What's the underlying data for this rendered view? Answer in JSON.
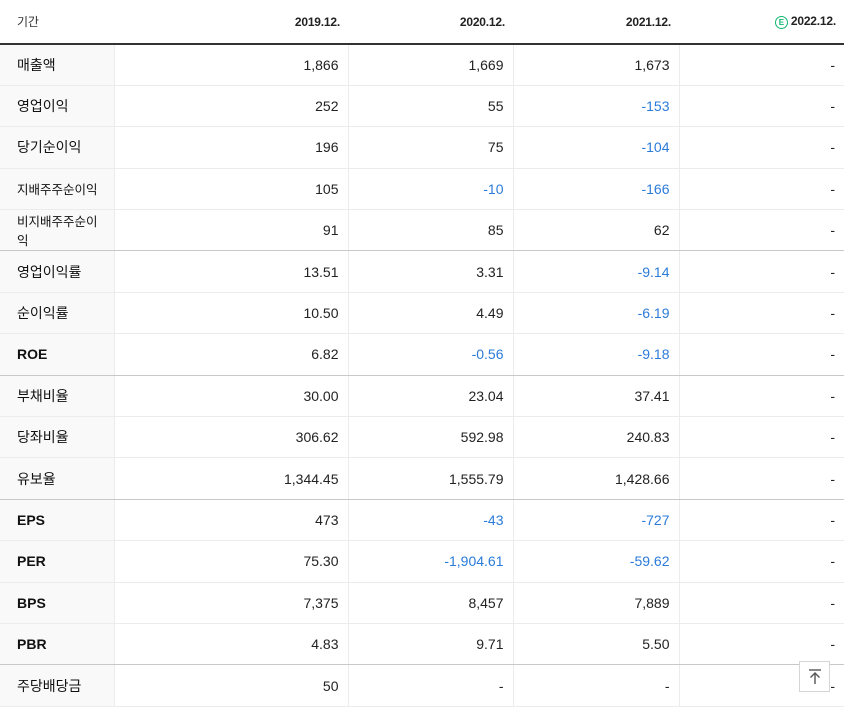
{
  "header": {
    "period_label": "기간",
    "columns": [
      "2019.12.",
      "2020.12.",
      "2021.12.",
      "2022.12."
    ],
    "estimate_icon": "estimate-e-icon",
    "estimate_glyph": "E"
  },
  "rows": [
    {
      "label": "매출액",
      "values": [
        "1,866",
        "1,669",
        "1,673",
        "-"
      ]
    },
    {
      "label": "영업이익",
      "values": [
        "252",
        "55",
        "-153",
        "-"
      ]
    },
    {
      "label": "당기순이익",
      "values": [
        "196",
        "75",
        "-104",
        "-"
      ]
    },
    {
      "label": "지배주주순이익",
      "values": [
        "105",
        "-10",
        "-166",
        "-"
      ]
    },
    {
      "label": "비지배주주순이익",
      "values": [
        "91",
        "85",
        "62",
        "-"
      ]
    },
    {
      "label": "영업이익률",
      "values": [
        "13.51",
        "3.31",
        "-9.14",
        "-"
      ]
    },
    {
      "label": "순이익률",
      "values": [
        "10.50",
        "4.49",
        "-6.19",
        "-"
      ]
    },
    {
      "label": "ROE",
      "values": [
        "6.82",
        "-0.56",
        "-9.18",
        "-"
      ]
    },
    {
      "label": "부채비율",
      "values": [
        "30.00",
        "23.04",
        "37.41",
        "-"
      ]
    },
    {
      "label": "당좌비율",
      "values": [
        "306.62",
        "592.98",
        "240.83",
        "-"
      ]
    },
    {
      "label": "유보율",
      "values": [
        "1,344.45",
        "1,555.79",
        "1,428.66",
        "-"
      ]
    },
    {
      "label": "EPS",
      "values": [
        "473",
        "-43",
        "-727",
        "-"
      ]
    },
    {
      "label": "PER",
      "values": [
        "75.30",
        "-1,904.61",
        "-59.62",
        "-"
      ]
    },
    {
      "label": "BPS",
      "values": [
        "7,375",
        "8,457",
        "7,889",
        "-"
      ]
    },
    {
      "label": "PBR",
      "values": [
        "4.83",
        "9.71",
        "5.50",
        "-"
      ]
    },
    {
      "label": "주당배당금",
      "values": [
        "50",
        "-",
        "-",
        "-"
      ]
    }
  ],
  "colors": {
    "negative": "#2b7bd9",
    "estimate": "#11b870"
  },
  "scroll_top_icon": "arrow-up-to-top-icon"
}
